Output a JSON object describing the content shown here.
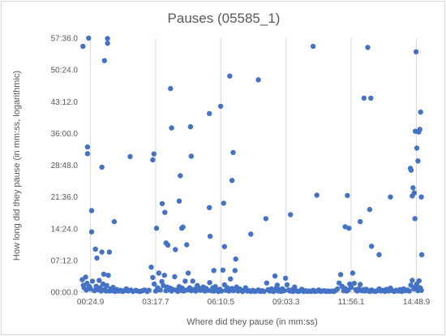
{
  "chart_data": {
    "type": "scatter",
    "title": "Pauses (05585_1)",
    "xlabel": "Where did they pause (in mm:ss)",
    "ylabel": "How long did they pause (in mm:ss, logarithmic)",
    "x_unit": "seconds",
    "y_unit": "seconds",
    "xlim": [
      0,
      905
    ],
    "ylim": [
      0,
      3456
    ],
    "x_ticks": [
      {
        "value": 24.9,
        "label": "00:24.9"
      },
      {
        "value": 197.7,
        "label": "03:17.7"
      },
      {
        "value": 370.5,
        "label": "06:10.5"
      },
      {
        "value": 543.3,
        "label": "09:03.3"
      },
      {
        "value": 716.1,
        "label": "11:56.1"
      },
      {
        "value": 888.9,
        "label": "14:48.9"
      }
    ],
    "y_ticks": [
      {
        "value": 0,
        "label": "00:00.0"
      },
      {
        "value": 432,
        "label": "07:12.0"
      },
      {
        "value": 864,
        "label": "14:24.0"
      },
      {
        "value": 1296,
        "label": "21:36.0"
      },
      {
        "value": 1728,
        "label": "28:48.0"
      },
      {
        "value": 2160,
        "label": "36:00.0"
      },
      {
        "value": 2592,
        "label": "43:12.0"
      },
      {
        "value": 3024,
        "label": "50:24.0"
      },
      {
        "value": 3456,
        "label": "57:36.0"
      }
    ],
    "grid": {
      "vertical": true,
      "horizontal": false
    },
    "legend": "none",
    "marker_color": "#4472c4",
    "points": [
      [
        5,
        3345
      ],
      [
        20,
        3456
      ],
      [
        17,
        1975
      ],
      [
        17,
        1885
      ],
      [
        28,
        1110
      ],
      [
        28,
        820
      ],
      [
        38,
        585
      ],
      [
        42,
        465
      ],
      [
        55,
        1700
      ],
      [
        55,
        545
      ],
      [
        62,
        3150
      ],
      [
        70,
        3385
      ],
      [
        70,
        3450
      ],
      [
        72,
        230
      ],
      [
        75,
        545
      ],
      [
        88,
        960
      ],
      [
        130,
        1845
      ],
      [
        190,
        1800
      ],
      [
        193,
        1880
      ],
      [
        200,
        870
      ],
      [
        215,
        1205
      ],
      [
        222,
        1085
      ],
      [
        225,
        670
      ],
      [
        230,
        640
      ],
      [
        237,
        2770
      ],
      [
        240,
        2235
      ],
      [
        250,
        580
      ],
      [
        260,
        1240
      ],
      [
        263,
        1585
      ],
      [
        267,
        870
      ],
      [
        270,
        885
      ],
      [
        280,
        645
      ],
      [
        290,
        2250
      ],
      [
        292,
        1850
      ],
      [
        340,
        2430
      ],
      [
        340,
        1150
      ],
      [
        342,
        760
      ],
      [
        352,
        295
      ],
      [
        370,
        2530
      ],
      [
        378,
        1210
      ],
      [
        380,
        620
      ],
      [
        394,
        2940
      ],
      [
        400,
        1520
      ],
      [
        403,
        1900
      ],
      [
        410,
        450
      ],
      [
        450,
        790
      ],
      [
        470,
        2890
      ],
      [
        490,
        1000
      ],
      [
        520,
        95
      ],
      [
        555,
        1055
      ],
      [
        615,
        3345
      ],
      [
        625,
        1320
      ],
      [
        700,
        890
      ],
      [
        706,
        1315
      ],
      [
        710,
        870
      ],
      [
        740,
        960
      ],
      [
        750,
        2640
      ],
      [
        760,
        3330
      ],
      [
        765,
        1125
      ],
      [
        768,
        2640
      ],
      [
        770,
        625
      ],
      [
        790,
        510
      ],
      [
        820,
        1295
      ],
      [
        873,
        1685
      ],
      [
        875,
        1660
      ],
      [
        878,
        1310
      ],
      [
        880,
        1420
      ],
      [
        883,
        1350
      ],
      [
        885,
        1000
      ],
      [
        886,
        2190
      ],
      [
        888,
        3270
      ],
      [
        890,
        1960
      ],
      [
        893,
        1785
      ],
      [
        895,
        2180
      ],
      [
        898,
        2215
      ],
      [
        900,
        2450
      ],
      [
        902,
        1295
      ],
      [
        903,
        510
      ],
      [
        3,
        170
      ],
      [
        6,
        95
      ],
      [
        8,
        60
      ],
      [
        12,
        205
      ],
      [
        14,
        30
      ],
      [
        16,
        120
      ],
      [
        22,
        75
      ],
      [
        25,
        45
      ],
      [
        30,
        150
      ],
      [
        35,
        20
      ],
      [
        40,
        80
      ],
      [
        45,
        35
      ],
      [
        48,
        160
      ],
      [
        50,
        60
      ],
      [
        53,
        15
      ],
      [
        58,
        110
      ],
      [
        60,
        245
      ],
      [
        63,
        40
      ],
      [
        66,
        15
      ],
      [
        68,
        90
      ],
      [
        75,
        15
      ],
      [
        78,
        45
      ],
      [
        82,
        20
      ],
      [
        85,
        65
      ],
      [
        90,
        10
      ],
      [
        95,
        35
      ],
      [
        100,
        15
      ],
      [
        105,
        25
      ],
      [
        110,
        10
      ],
      [
        115,
        20
      ],
      [
        120,
        45
      ],
      [
        125,
        15
      ],
      [
        132,
        30
      ],
      [
        138,
        10
      ],
      [
        145,
        25
      ],
      [
        150,
        15
      ],
      [
        157,
        10
      ],
      [
        163,
        20
      ],
      [
        168,
        30
      ],
      [
        175,
        10
      ],
      [
        180,
        25
      ],
      [
        186,
        340
      ],
      [
        190,
        200
      ],
      [
        194,
        110
      ],
      [
        198,
        15
      ],
      [
        203,
        60
      ],
      [
        206,
        260
      ],
      [
        210,
        30
      ],
      [
        214,
        145
      ],
      [
        218,
        90
      ],
      [
        221,
        230
      ],
      [
        225,
        20
      ],
      [
        228,
        70
      ],
      [
        232,
        35
      ],
      [
        236,
        55
      ],
      [
        240,
        15
      ],
      [
        243,
        40
      ],
      [
        248,
        210
      ],
      [
        252,
        30
      ],
      [
        256,
        10
      ],
      [
        260,
        75
      ],
      [
        264,
        25
      ],
      [
        268,
        55
      ],
      [
        272,
        15
      ],
      [
        276,
        150
      ],
      [
        280,
        30
      ],
      [
        284,
        260
      ],
      [
        288,
        60
      ],
      [
        292,
        20
      ],
      [
        296,
        150
      ],
      [
        300,
        40
      ],
      [
        304,
        15
      ],
      [
        308,
        90
      ],
      [
        312,
        60
      ],
      [
        316,
        25
      ],
      [
        320,
        35
      ],
      [
        324,
        70
      ],
      [
        328,
        15
      ],
      [
        332,
        50
      ],
      [
        336,
        25
      ],
      [
        341,
        130
      ],
      [
        345,
        20
      ],
      [
        349,
        60
      ],
      [
        352,
        15
      ],
      [
        356,
        75
      ],
      [
        360,
        30
      ],
      [
        364,
        10
      ],
      [
        368,
        40
      ],
      [
        372,
        15
      ],
      [
        376,
        300
      ],
      [
        380,
        100
      ],
      [
        384,
        25
      ],
      [
        388,
        60
      ],
      [
        392,
        15
      ],
      [
        396,
        180
      ],
      [
        400,
        50
      ],
      [
        404,
        20
      ],
      [
        408,
        295
      ],
      [
        412,
        70
      ],
      [
        416,
        15
      ],
      [
        420,
        45
      ],
      [
        424,
        25
      ],
      [
        428,
        10
      ],
      [
        432,
        30
      ],
      [
        436,
        60
      ],
      [
        440,
        15
      ],
      [
        445,
        20
      ],
      [
        450,
        10
      ],
      [
        455,
        25
      ],
      [
        460,
        10
      ],
      [
        465,
        15
      ],
      [
        470,
        30
      ],
      [
        475,
        10
      ],
      [
        480,
        20
      ],
      [
        485,
        10
      ],
      [
        492,
        125
      ],
      [
        496,
        35
      ],
      [
        500,
        15
      ],
      [
        505,
        45
      ],
      [
        510,
        10
      ],
      [
        514,
        220
      ],
      [
        518,
        60
      ],
      [
        522,
        15
      ],
      [
        526,
        35
      ],
      [
        530,
        10
      ],
      [
        534,
        45
      ],
      [
        538,
        20
      ],
      [
        542,
        190
      ],
      [
        546,
        100
      ],
      [
        550,
        30
      ],
      [
        554,
        15
      ],
      [
        558,
        30
      ],
      [
        562,
        10
      ],
      [
        566,
        70
      ],
      [
        570,
        20
      ],
      [
        575,
        10
      ],
      [
        580,
        15
      ],
      [
        585,
        40
      ],
      [
        590,
        10
      ],
      [
        595,
        20
      ],
      [
        600,
        10
      ],
      [
        605,
        15
      ],
      [
        610,
        10
      ],
      [
        615,
        25
      ],
      [
        620,
        10
      ],
      [
        625,
        15
      ],
      [
        630,
        30
      ],
      [
        635,
        10
      ],
      [
        640,
        15
      ],
      [
        645,
        20
      ],
      [
        650,
        10
      ],
      [
        655,
        15
      ],
      [
        660,
        10
      ],
      [
        665,
        15
      ],
      [
        670,
        10
      ],
      [
        675,
        25
      ],
      [
        680,
        45
      ],
      [
        684,
        125
      ],
      [
        688,
        240
      ],
      [
        692,
        80
      ],
      [
        696,
        20
      ],
      [
        700,
        50
      ],
      [
        704,
        15
      ],
      [
        708,
        30
      ],
      [
        712,
        110
      ],
      [
        716,
        65
      ],
      [
        720,
        260
      ],
      [
        724,
        120
      ],
      [
        728,
        35
      ],
      [
        732,
        15
      ],
      [
        736,
        45
      ],
      [
        740,
        105
      ],
      [
        744,
        20
      ],
      [
        748,
        35
      ],
      [
        752,
        15
      ],
      [
        756,
        40
      ],
      [
        760,
        20
      ],
      [
        765,
        10
      ],
      [
        770,
        30
      ],
      [
        775,
        15
      ],
      [
        780,
        10
      ],
      [
        785,
        20
      ],
      [
        790,
        45
      ],
      [
        795,
        15
      ],
      [
        800,
        25
      ],
      [
        805,
        10
      ],
      [
        810,
        40
      ],
      [
        815,
        15
      ],
      [
        820,
        55
      ],
      [
        825,
        20
      ],
      [
        830,
        10
      ],
      [
        835,
        25
      ],
      [
        840,
        15
      ],
      [
        845,
        35
      ],
      [
        850,
        10
      ],
      [
        855,
        45
      ],
      [
        860,
        20
      ],
      [
        865,
        30
      ],
      [
        870,
        15
      ],
      [
        874,
        95
      ],
      [
        878,
        160
      ],
      [
        882,
        45
      ],
      [
        886,
        70
      ],
      [
        890,
        110
      ],
      [
        893,
        20
      ],
      [
        896,
        155
      ],
      [
        899,
        60
      ],
      [
        902,
        25
      ]
    ]
  }
}
